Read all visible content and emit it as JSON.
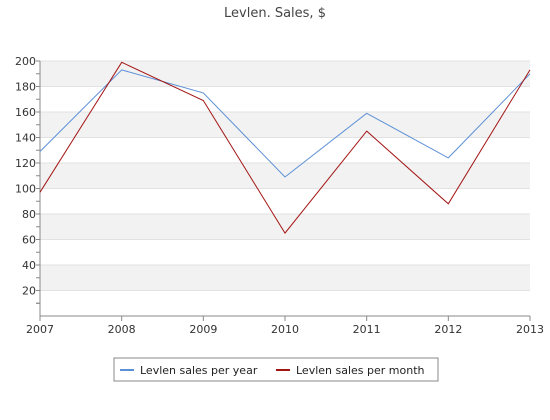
{
  "chart_data": {
    "type": "line",
    "title": "Levlen. Sales, $",
    "xlabel": "",
    "ylabel": "",
    "categories": [
      "2007",
      "2008",
      "2009",
      "2010",
      "2011",
      "2012",
      "2013"
    ],
    "yticks": [
      "20",
      "40",
      "60",
      "80",
      "100",
      "120",
      "140",
      "160",
      "180",
      "200"
    ],
    "ylim": [
      0,
      200
    ],
    "grid": "horizontal alternating bands",
    "legend_position": "bottom-center",
    "series": [
      {
        "name": "Levlen sales per year",
        "color": "#5b8fd6",
        "values": [
          129,
          193,
          175,
          109,
          159,
          124,
          190
        ]
      },
      {
        "name": "Levlen sales per month",
        "color": "#a31515",
        "values": [
          97,
          199,
          169,
          65,
          145,
          88,
          193
        ]
      }
    ]
  }
}
